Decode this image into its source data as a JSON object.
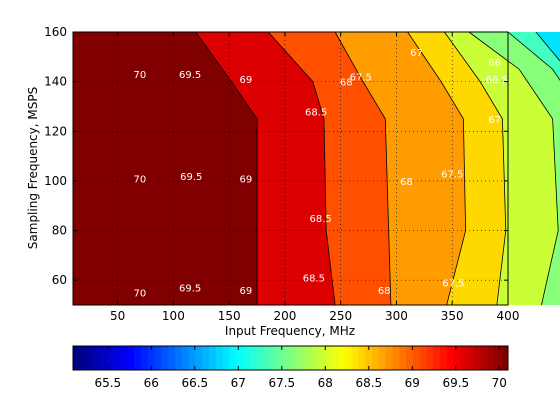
{
  "chart_data": {
    "type": "contour",
    "xlabel": "Input Frequency, MHz",
    "ylabel": "Sampling Frequency, MSPS",
    "xlim": [
      10,
      400
    ],
    "ylim": [
      50,
      160
    ],
    "xticks": [
      50,
      100,
      150,
      200,
      250,
      300,
      350,
      400
    ],
    "yticks": [
      60,
      80,
      100,
      120,
      140,
      160
    ],
    "grid": true,
    "grid_style": "dotted",
    "colormap": "jet",
    "colorbar": {
      "placement": "bottom",
      "range": [
        65.1,
        70.1
      ],
      "ticks": [
        65.5,
        66,
        66.5,
        67,
        67.5,
        68,
        68.5,
        69,
        69.5,
        70
      ]
    },
    "levels": [
      {
        "level": 70,
        "color": "#800000",
        "boundary": [
          [
            120,
            160
          ],
          [
            152,
            140
          ],
          [
            175,
            125
          ],
          [
            175,
            50
          ]
        ]
      },
      {
        "level": 69.5,
        "color": "#dd0000",
        "boundary": [
          [
            185,
            160
          ],
          [
            225,
            140
          ],
          [
            235,
            125
          ],
          [
            237,
            80
          ],
          [
            245,
            50
          ]
        ]
      },
      {
        "level": 69,
        "color": "#ff5000",
        "boundary": [
          [
            245,
            160
          ],
          [
            270,
            140
          ],
          [
            290,
            125
          ],
          [
            293,
            80
          ],
          [
            295,
            50
          ]
        ]
      },
      {
        "level": 68.5,
        "color": "#ff9c00",
        "boundary": [
          [
            310,
            160
          ],
          [
            340,
            140
          ],
          [
            360,
            125
          ],
          [
            362,
            80
          ],
          [
            345,
            50
          ]
        ]
      },
      {
        "level": 68,
        "color": "#ffd800",
        "boundary": [
          [
            343,
            160
          ],
          [
            375,
            140
          ],
          [
            395,
            125
          ],
          [
            398,
            80
          ],
          [
            390,
            50
          ]
        ]
      },
      {
        "level": 67.5,
        "color": "#caff38",
        "boundary": [
          [
            365,
            160
          ],
          [
            410,
            145
          ],
          [
            440,
            125
          ],
          [
            445,
            80
          ],
          [
            430,
            50
          ]
        ]
      },
      {
        "level": 67,
        "color": "#88ff78",
        "boundary": [
          [
            400,
            160
          ],
          [
            440,
            145
          ],
          [
            470,
            125
          ],
          [
            482,
            80
          ],
          [
            478,
            50
          ]
        ]
      },
      {
        "level": 66.5,
        "color": "#40ffbf",
        "boundary": [
          [
            425,
            160
          ],
          [
            462,
            140
          ],
          [
            495,
            125
          ],
          [
            508,
            80
          ],
          [
            508,
            50
          ]
        ]
      },
      {
        "level": 66,
        "color": "#00e4ff",
        "boundary": [
          [
            455,
            160
          ],
          [
            485,
            140
          ],
          [
            508,
            120
          ]
        ]
      },
      {
        "level": 65.5,
        "color": "#0094ff",
        "boundary": [
          [
            485,
            160
          ],
          [
            508,
            145
          ]
        ]
      },
      {
        "level": 65.1,
        "color": "#0020ff",
        "boundary": [
          [
            508,
            160
          ]
        ]
      }
    ],
    "base_color": "#2400ff",
    "contour_labels": [
      {
        "text": "70",
        "x": 70,
        "y": 143
      },
      {
        "text": "69.5",
        "x": 115,
        "y": 143
      },
      {
        "text": "69",
        "x": 165,
        "y": 141
      },
      {
        "text": "68.5",
        "x": 228,
        "y": 128
      },
      {
        "text": "68",
        "x": 255,
        "y": 140
      },
      {
        "text": "67.5",
        "x": 268,
        "y": 142
      },
      {
        "text": "67",
        "x": 318,
        "y": 152
      },
      {
        "text": "66.5",
        "x": 390,
        "y": 141
      },
      {
        "text": "66",
        "x": 388,
        "y": 148
      },
      {
        "text": "67",
        "x": 388,
        "y": 125
      },
      {
        "text": "70",
        "x": 70,
        "y": 101
      },
      {
        "text": "69.5",
        "x": 116,
        "y": 102
      },
      {
        "text": "69",
        "x": 165,
        "y": 101
      },
      {
        "text": "68",
        "x": 309,
        "y": 100
      },
      {
        "text": "67.5",
        "x": 350,
        "y": 103
      },
      {
        "text": "68.5",
        "x": 232,
        "y": 85
      },
      {
        "text": "70",
        "x": 70,
        "y": 55
      },
      {
        "text": "69.5",
        "x": 115,
        "y": 57
      },
      {
        "text": "69",
        "x": 165,
        "y": 56
      },
      {
        "text": "68.5",
        "x": 226,
        "y": 61
      },
      {
        "text": "68",
        "x": 289,
        "y": 56
      },
      {
        "text": "67.5",
        "x": 351,
        "y": 59
      }
    ]
  }
}
